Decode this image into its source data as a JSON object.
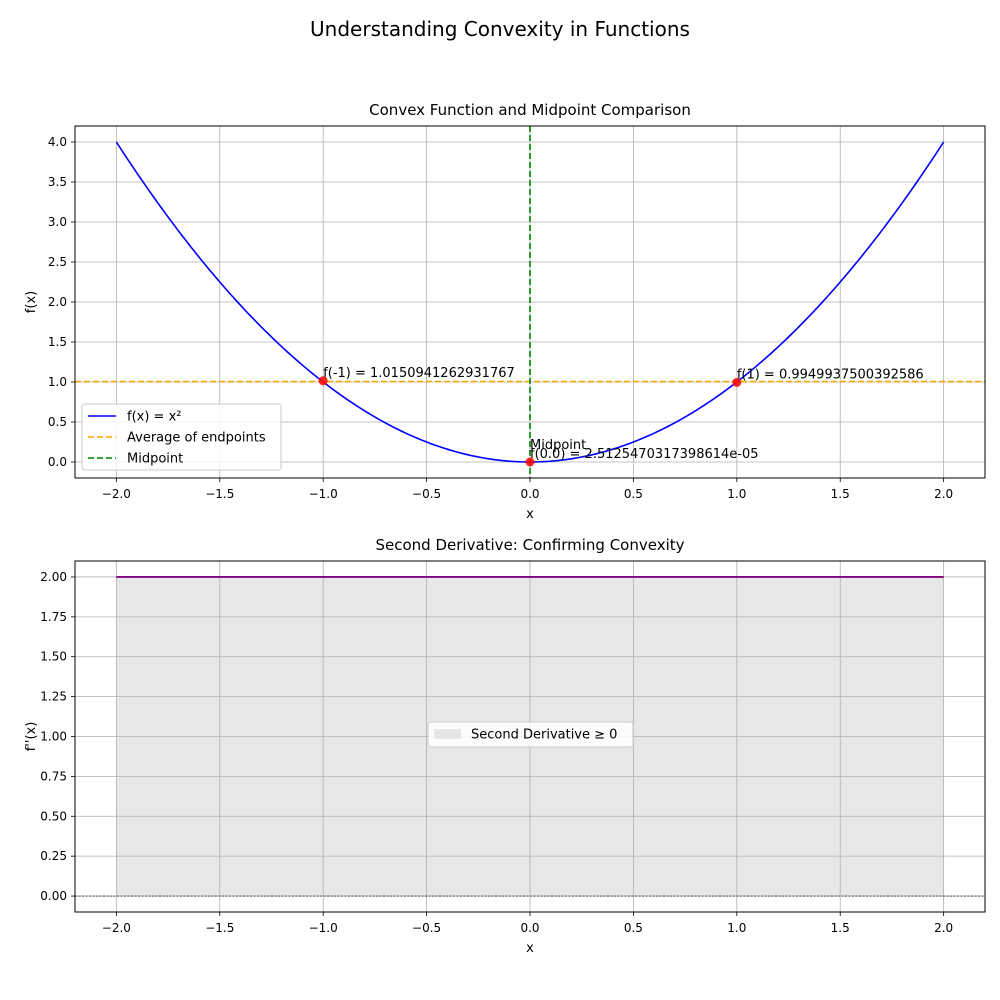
{
  "suptitle": "Understanding Convexity in Functions",
  "chart_data": [
    {
      "type": "line",
      "title": "Convex Function and Midpoint Comparison",
      "xlabel": "x",
      "ylabel": "f(x)",
      "xlim": [
        -2.2,
        2.2
      ],
      "ylim": [
        -0.2,
        4.2
      ],
      "xticks": [
        -2.0,
        -1.5,
        -1.0,
        -0.5,
        0.0,
        0.5,
        1.0,
        1.5,
        2.0
      ],
      "xtick_labels": [
        "−2.0",
        "−1.5",
        "−1.0",
        "−0.5",
        "0.0",
        "0.5",
        "1.0",
        "1.5",
        "2.0"
      ],
      "yticks": [
        0.0,
        0.5,
        1.0,
        1.5,
        2.0,
        2.5,
        3.0,
        3.5,
        4.0
      ],
      "ytick_labels": [
        "0.0",
        "0.5",
        "1.0",
        "1.5",
        "2.0",
        "2.5",
        "3.0",
        "3.5",
        "4.0"
      ],
      "grid": true,
      "legend_position": "lower-left",
      "series": [
        {
          "name": "f(x) = x²",
          "kind": "curve",
          "function": "x^2",
          "x_range": [
            -2,
            2
          ],
          "color": "#0000ff"
        },
        {
          "name": "Average of endpoints",
          "kind": "hline",
          "y": 1.0050439381662175,
          "color": "#ffa500"
        },
        {
          "name": "Midpoint",
          "kind": "vline",
          "x": 0.0,
          "color": "#008000"
        }
      ],
      "points": [
        {
          "x": -1.0,
          "y": 1.0150941262931767,
          "label": "f(-1) = 1.0150941262931767"
        },
        {
          "x": 1.0,
          "y": 0.9949937500392586,
          "label": "f(1) = 0.9949937500392586"
        },
        {
          "x": 0.0,
          "y": 2.5125470317398614e-05,
          "label": "f(0.0) = 2.5125470317398614e-05"
        }
      ],
      "annotations": [
        {
          "text": "Midpoint",
          "x": 0.0,
          "y": 0.16
        }
      ],
      "point_color": "#ff0000"
    },
    {
      "type": "area",
      "title": "Second Derivative: Confirming Convexity",
      "xlabel": "x",
      "ylabel": "f''(x)",
      "xlim": [
        -2.2,
        2.2
      ],
      "ylim": [
        -0.1,
        2.1
      ],
      "xticks": [
        -2.0,
        -1.5,
        -1.0,
        -0.5,
        0.0,
        0.5,
        1.0,
        1.5,
        2.0
      ],
      "xtick_labels": [
        "−2.0",
        "−1.5",
        "−1.0",
        "−0.5",
        "0.0",
        "0.5",
        "1.0",
        "1.5",
        "2.0"
      ],
      "yticks": [
        0.0,
        0.25,
        0.5,
        0.75,
        1.0,
        1.25,
        1.5,
        1.75,
        2.0
      ],
      "ytick_labels": [
        "0.00",
        "0.25",
        "0.50",
        "0.75",
        "1.00",
        "1.25",
        "1.50",
        "1.75",
        "2.00"
      ],
      "grid": true,
      "legend_position": "center",
      "series": [
        {
          "name": "",
          "kind": "hline_segment",
          "y": 2.0,
          "x_range": [
            -2,
            2
          ],
          "color": "#800080"
        },
        {
          "name": "Second Derivative ≥ 0",
          "kind": "fill",
          "y": 2.0,
          "x_range": [
            -2,
            2
          ],
          "color": "#d3d3d3"
        }
      ],
      "zero_line": true
    }
  ]
}
